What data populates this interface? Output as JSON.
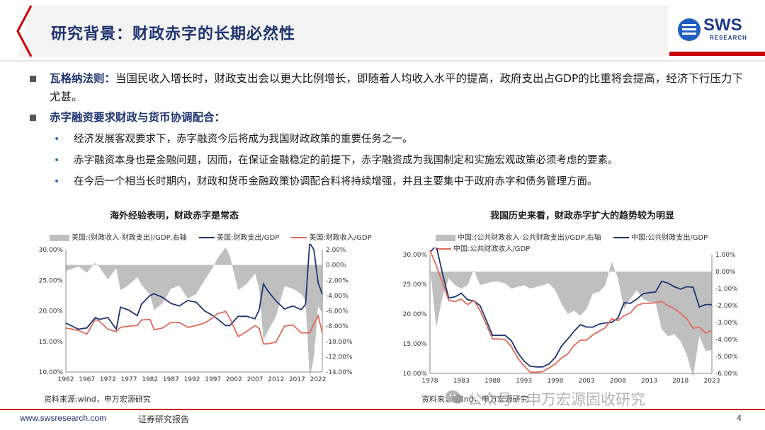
{
  "slide": {
    "title": "研究背景：财政赤字的长期必然性",
    "logo": {
      "text": "SWS",
      "sub": "RESEARCH"
    }
  },
  "bullets": {
    "b1_head": "瓦格纳法则：",
    "b1_body": "当国民收入增长时，财政支出会以更大比例增长，即随着人均收入水平的提高，政府支出占GDP的比重将会提高，经济下行压力下尤甚。",
    "b2_head": "赤字融资要求财政与货币协调配合：",
    "subs": [
      "经济发展客观要求下，赤字融资今后将成为我国财政政策的重要任务之一。",
      "赤字融资本身也是金融问题，因而，在保证金融稳定的前提下，赤字融资成为我国制定和实施宏观政策必须考虑的要素。",
      "在今后一个相当长时期内，财政和货币金融政策协调配合料将持续增强，并且主要集中于政府赤字和债务管理方面。"
    ]
  },
  "charts": {
    "left": {
      "title": "海外经验表明，财政赤字是常态",
      "legend": [
        "美国:(财政收入-财政支出)/GDP,右轴",
        "美国:财政支出/GDP",
        "美国:财政收入/GDP"
      ],
      "source": "资料来源:wind，申万宏源研究"
    },
    "right": {
      "title": "我国历史来看，财政赤字扩大的趋势较为明显",
      "legend": [
        "中国:(公共财政收入-公共财政支出)/GDP,右轴",
        "中国:公共财政支出/GDP",
        "中国:公共财政收入/GDP"
      ],
      "source": "资料来源:wind，申万宏源研究"
    }
  },
  "chart_data": [
    {
      "type": "line",
      "title": "海外经验表明，财政赤字是常态",
      "x": [
        1962,
        1965,
        1967,
        1969,
        1970,
        1972,
        1974,
        1975,
        1977,
        1979,
        1980,
        1982,
        1983,
        1985,
        1987,
        1989,
        1991,
        1993,
        1995,
        1997,
        1998,
        2000,
        2001,
        2003,
        2005,
        2007,
        2008,
        2009,
        2010,
        2012,
        2014,
        2016,
        2018,
        2019,
        2020,
        2021,
        2022,
        2023
      ],
      "series": [
        {
          "name": "美国:(财政收入-财政支出)/GDP,右轴",
          "axis": "right",
          "values": [
            -0.8,
            -0.2,
            -1.0,
            0.3,
            -0.3,
            -1.9,
            -0.4,
            -3.3,
            -2.6,
            -1.6,
            -2.6,
            -3.9,
            -5.9,
            -5.0,
            -3.1,
            -2.7,
            -4.4,
            -3.8,
            -2.0,
            -0.3,
            0.8,
            2.3,
            1.2,
            -3.3,
            -2.5,
            -1.1,
            -3.1,
            -9.8,
            -8.7,
            -6.7,
            -2.8,
            -3.1,
            -3.8,
            -4.6,
            -14.7,
            -12.1,
            -5.4,
            -6.3
          ]
        },
        {
          "name": "美国:财政支出/GDP",
          "axis": "left",
          "values": [
            18.0,
            17.0,
            17.2,
            18.9,
            18.6,
            18.9,
            17.0,
            20.6,
            20.1,
            19.2,
            21.1,
            22.5,
            22.8,
            22.2,
            21.2,
            20.8,
            21.7,
            21.4,
            20.0,
            19.2,
            18.7,
            17.6,
            17.6,
            19.1,
            19.1,
            18.7,
            20.2,
            24.4,
            23.3,
            21.6,
            20.3,
            20.8,
            20.2,
            21.0,
            31.1,
            30.0,
            24.6,
            22.7
          ]
        },
        {
          "name": "美国:财政收入/GDP",
          "axis": "left",
          "values": [
            17.2,
            16.8,
            16.2,
            18.6,
            18.3,
            17.0,
            16.6,
            17.3,
            17.5,
            17.6,
            18.5,
            18.6,
            16.9,
            17.2,
            18.1,
            18.1,
            17.3,
            17.6,
            18.0,
            18.9,
            19.5,
            19.9,
            18.8,
            15.8,
            16.6,
            17.6,
            17.1,
            14.6,
            14.6,
            14.9,
            17.5,
            17.7,
            16.4,
            16.4,
            16.4,
            17.9,
            19.2,
            16.4
          ]
        }
      ],
      "ylim": [
        10,
        30
      ],
      "y2lim": [
        -14,
        2
      ],
      "xticks": [
        "1962",
        "1967",
        "1972",
        "1977",
        "1982",
        "1987",
        "1992",
        "1997",
        "2002",
        "2007",
        "2012",
        "2017",
        "2022"
      ],
      "yticks": [
        "10.00%",
        "15.00%",
        "20.00%",
        "25.00%",
        "30.00%"
      ],
      "y2ticks": [
        "-14.00%",
        "-12.00%",
        "-10.00%",
        "-8.00%",
        "-6.00%",
        "-4.00%",
        "-2.00%",
        "0.00%",
        "2.00%"
      ]
    },
    {
      "type": "line",
      "title": "我国历史来看，财政赤字扩大的趋势较为明显",
      "x": [
        1978,
        1979,
        1980,
        1981,
        1982,
        1983,
        1984,
        1985,
        1986,
        1987,
        1988,
        1989,
        1990,
        1991,
        1992,
        1993,
        1994,
        1995,
        1996,
        1997,
        1998,
        1999,
        2000,
        2001,
        2002,
        2003,
        2004,
        2005,
        2006,
        2007,
        2008,
        2009,
        2010,
        2011,
        2012,
        2013,
        2014,
        2015,
        2016,
        2017,
        2018,
        2019,
        2020,
        2021,
        2022,
        2023
      ],
      "series": [
        {
          "name": "中国:(公共财政收入-公共财政支出)/GDP,右轴",
          "axis": "right",
          "values": [
            0.3,
            -3.3,
            -1.5,
            -0.4,
            -0.8,
            -1.0,
            -0.8,
            0.1,
            -0.8,
            -0.7,
            -0.6,
            -0.6,
            -0.7,
            -1.0,
            -0.9,
            -0.8,
            -1.0,
            -0.9,
            -0.8,
            -0.7,
            -1.1,
            -1.9,
            -2.5,
            -2.3,
            -2.6,
            -2.2,
            -1.3,
            -1.2,
            -0.8,
            0.6,
            -0.4,
            -2.2,
            -1.6,
            -1.1,
            -1.6,
            -1.8,
            -1.8,
            -3.4,
            -3.8,
            -3.7,
            -4.1,
            -4.9,
            -6.2,
            -3.8,
            -4.7,
            -4.6
          ]
        },
        {
          "name": "中国:公共财政支出/GDP",
          "axis": "left",
          "values": [
            30.4,
            31.5,
            26.8,
            22.7,
            22.9,
            23.5,
            22.4,
            22.2,
            21.4,
            18.9,
            16.4,
            16.4,
            16.4,
            15.5,
            13.5,
            12.1,
            11.2,
            11.1,
            11.1,
            11.6,
            12.7,
            14.6,
            15.8,
            17.1,
            18.2,
            17.8,
            17.8,
            18.3,
            18.5,
            18.6,
            19.3,
            21.9,
            21.8,
            22.5,
            23.4,
            23.6,
            23.7,
            25.5,
            25.2,
            24.6,
            24.2,
            24.6,
            24.5,
            21.2,
            21.6,
            21.6
          ]
        },
        {
          "name": "中国:公共财政收入/GDP",
          "axis": "left",
          "values": [
            30.7,
            28.2,
            25.3,
            22.3,
            22.1,
            22.5,
            21.6,
            22.3,
            20.6,
            18.2,
            15.8,
            15.8,
            15.7,
            14.5,
            12.6,
            11.3,
            10.2,
            10.2,
            10.3,
            10.9,
            11.6,
            12.6,
            13.3,
            14.7,
            15.6,
            15.6,
            16.5,
            17.1,
            17.7,
            19.2,
            18.9,
            19.7,
            20.2,
            21.4,
            21.8,
            21.8,
            21.9,
            22.1,
            21.4,
            20.9,
            20.1,
            19.2,
            17.6,
            17.8,
            16.8,
            17.2
          ]
        }
      ],
      "ylim": [
        10,
        30
      ],
      "y2lim": [
        -6,
        1
      ],
      "xticks": [
        "1978",
        "1983",
        "1988",
        "1993",
        "1998",
        "2003",
        "2008",
        "2013",
        "2018",
        "2023"
      ],
      "yticks": [
        "10.00%",
        "15.00%",
        "20.00%",
        "25.00%",
        "30.00%"
      ],
      "y2ticks": [
        "-6.00%",
        "-5.00%",
        "-4.00%",
        "-3.00%",
        "-2.00%",
        "-1.00%",
        "0.00%",
        "1.00%"
      ]
    }
  ],
  "footer": {
    "url": "www.swsresearch.com",
    "report": "证券研究报告",
    "page": "4",
    "watermark": "公众号 · 申万宏源固收研究"
  },
  "colors": {
    "title": "#1f3470",
    "accent_red": "#c9000b",
    "area": "#bfbfbf",
    "expend_line": "#1f3470",
    "revenue_line": "#e06a5a"
  }
}
